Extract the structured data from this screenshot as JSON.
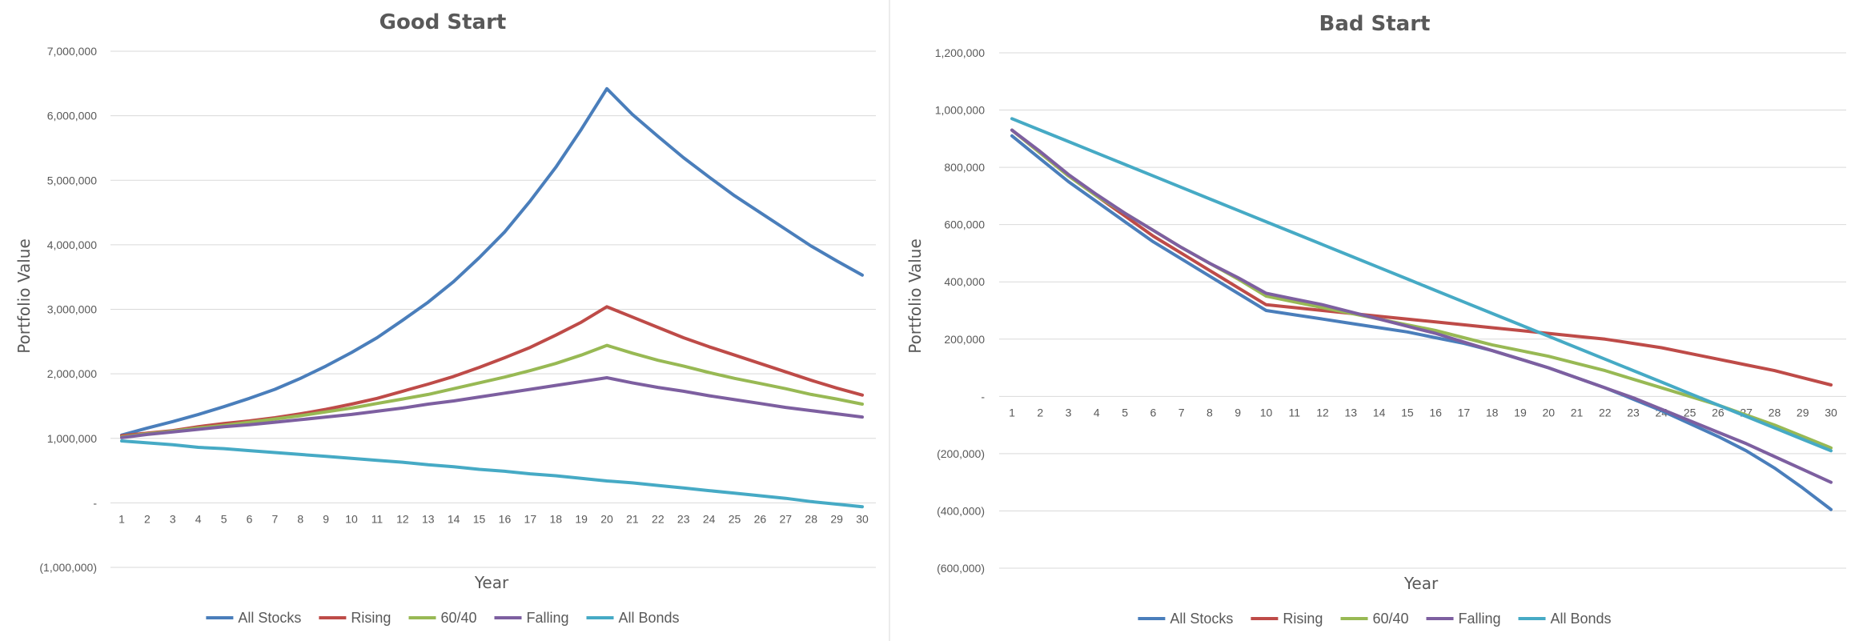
{
  "chart_data": [
    {
      "type": "line",
      "title": "Good Start",
      "xlabel": "Year",
      "ylabel": "Portfolio Value",
      "x": [
        1,
        2,
        3,
        4,
        5,
        6,
        7,
        8,
        9,
        10,
        11,
        12,
        13,
        14,
        15,
        16,
        17,
        18,
        19,
        20,
        21,
        22,
        23,
        24,
        25,
        26,
        27,
        28,
        29,
        30
      ],
      "ylim": [
        -1000000,
        7000000
      ],
      "yticks": [
        -1000000,
        0,
        1000000,
        2000000,
        3000000,
        4000000,
        5000000,
        6000000,
        7000000
      ],
      "ytick_labels": [
        "(1,000,000)",
        "-",
        "1,000,000",
        "2,000,000",
        "3,000,000",
        "4,000,000",
        "5,000,000",
        "6,000,000",
        "7,000,000"
      ],
      "grid": true,
      "legend_position": "bottom",
      "series": [
        {
          "name": "All Stocks",
          "color": "#4a7ebb",
          "values": [
            1050000,
            1160000,
            1260000,
            1370000,
            1490000,
            1620000,
            1760000,
            1930000,
            2120000,
            2330000,
            2560000,
            2830000,
            3110000,
            3430000,
            3800000,
            4200000,
            4680000,
            5200000,
            5790000,
            6420000,
            6020000,
            5680000,
            5350000,
            5050000,
            4760000,
            4500000,
            4240000,
            3980000,
            3750000,
            3530000
          ]
        },
        {
          "name": "Rising",
          "color": "#be4b48",
          "values": [
            1040000,
            1080000,
            1120000,
            1180000,
            1230000,
            1270000,
            1320000,
            1380000,
            1450000,
            1530000,
            1620000,
            1730000,
            1840000,
            1960000,
            2100000,
            2250000,
            2410000,
            2600000,
            2800000,
            3040000,
            2880000,
            2720000,
            2560000,
            2420000,
            2290000,
            2160000,
            2030000,
            1900000,
            1780000,
            1670000
          ]
        },
        {
          "name": "60/40",
          "color": "#98b954",
          "values": [
            1020000,
            1070000,
            1110000,
            1160000,
            1200000,
            1250000,
            1300000,
            1350000,
            1410000,
            1470000,
            1540000,
            1610000,
            1680000,
            1770000,
            1860000,
            1950000,
            2050000,
            2160000,
            2290000,
            2440000,
            2320000,
            2210000,
            2120000,
            2020000,
            1930000,
            1850000,
            1770000,
            1680000,
            1610000,
            1530000
          ]
        },
        {
          "name": "Falling",
          "color": "#7d5fa0",
          "values": [
            1010000,
            1060000,
            1100000,
            1140000,
            1180000,
            1210000,
            1250000,
            1290000,
            1330000,
            1370000,
            1420000,
            1470000,
            1530000,
            1580000,
            1640000,
            1700000,
            1760000,
            1820000,
            1880000,
            1940000,
            1860000,
            1790000,
            1730000,
            1660000,
            1600000,
            1540000,
            1480000,
            1430000,
            1380000,
            1330000
          ]
        },
        {
          "name": "All Bonds",
          "color": "#46aac5",
          "values": [
            960000,
            930000,
            900000,
            860000,
            840000,
            810000,
            780000,
            750000,
            720000,
            690000,
            660000,
            630000,
            590000,
            560000,
            520000,
            490000,
            450000,
            420000,
            380000,
            340000,
            310000,
            270000,
            230000,
            190000,
            150000,
            110000,
            70000,
            20000,
            -20000,
            -60000
          ]
        }
      ]
    },
    {
      "type": "line",
      "title": "Bad Start",
      "xlabel": "Year",
      "ylabel": "Portfolio Value",
      "x": [
        1,
        2,
        3,
        4,
        5,
        6,
        7,
        8,
        9,
        10,
        11,
        12,
        13,
        14,
        15,
        16,
        17,
        18,
        19,
        20,
        21,
        22,
        23,
        24,
        25,
        26,
        27,
        28,
        29,
        30
      ],
      "ylim": [
        -600000,
        1200000
      ],
      "yticks": [
        -600000,
        -400000,
        -200000,
        0,
        200000,
        400000,
        600000,
        800000,
        1000000,
        1200000
      ],
      "ytick_labels": [
        "(600,000)",
        "(400,000)",
        "(200,000)",
        "-",
        "200,000",
        "400,000",
        "600,000",
        "800,000",
        "1,000,000",
        "1,200,000"
      ],
      "grid": true,
      "legend_position": "bottom",
      "series": [
        {
          "name": "All Stocks",
          "color": "#4a7ebb",
          "values": [
            910000,
            830000,
            750000,
            680000,
            610000,
            540000,
            480000,
            420000,
            360000,
            300000,
            285000,
            270000,
            255000,
            240000,
            225000,
            205000,
            185000,
            160000,
            130000,
            100000,
            65000,
            30000,
            -10000,
            -50000,
            -95000,
            -140000,
            -190000,
            -250000,
            -320000,
            -395000
          ]
        },
        {
          "name": "Rising",
          "color": "#be4b48",
          "values": [
            930000,
            850000,
            770000,
            700000,
            630000,
            560000,
            500000,
            440000,
            380000,
            320000,
            310000,
            300000,
            290000,
            280000,
            270000,
            260000,
            250000,
            240000,
            230000,
            220000,
            210000,
            200000,
            185000,
            170000,
            150000,
            130000,
            110000,
            90000,
            65000,
            40000
          ]
        },
        {
          "name": "60/40",
          "color": "#98b954",
          "values": [
            930000,
            850000,
            770000,
            700000,
            640000,
            580000,
            520000,
            465000,
            410000,
            350000,
            330000,
            310000,
            290000,
            270000,
            250000,
            230000,
            205000,
            180000,
            160000,
            140000,
            115000,
            90000,
            60000,
            30000,
            0,
            -30000,
            -65000,
            -100000,
            -140000,
            -180000
          ]
        },
        {
          "name": "Falling",
          "color": "#7d5fa0",
          "values": [
            930000,
            855000,
            775000,
            705000,
            640000,
            580000,
            520000,
            465000,
            415000,
            360000,
            340000,
            320000,
            295000,
            270000,
            245000,
            220000,
            190000,
            160000,
            130000,
            100000,
            65000,
            30000,
            -5000,
            -45000,
            -85000,
            -125000,
            -165000,
            -210000,
            -255000,
            -300000
          ]
        },
        {
          "name": "All Bonds",
          "color": "#46aac5",
          "values": [
            970000,
            930000,
            890000,
            850000,
            810000,
            770000,
            730000,
            690000,
            650000,
            610000,
            570000,
            530000,
            490000,
            450000,
            410000,
            370000,
            330000,
            290000,
            250000,
            210000,
            170000,
            130000,
            90000,
            50000,
            10000,
            -30000,
            -70000,
            -110000,
            -150000,
            -190000
          ]
        }
      ]
    }
  ]
}
